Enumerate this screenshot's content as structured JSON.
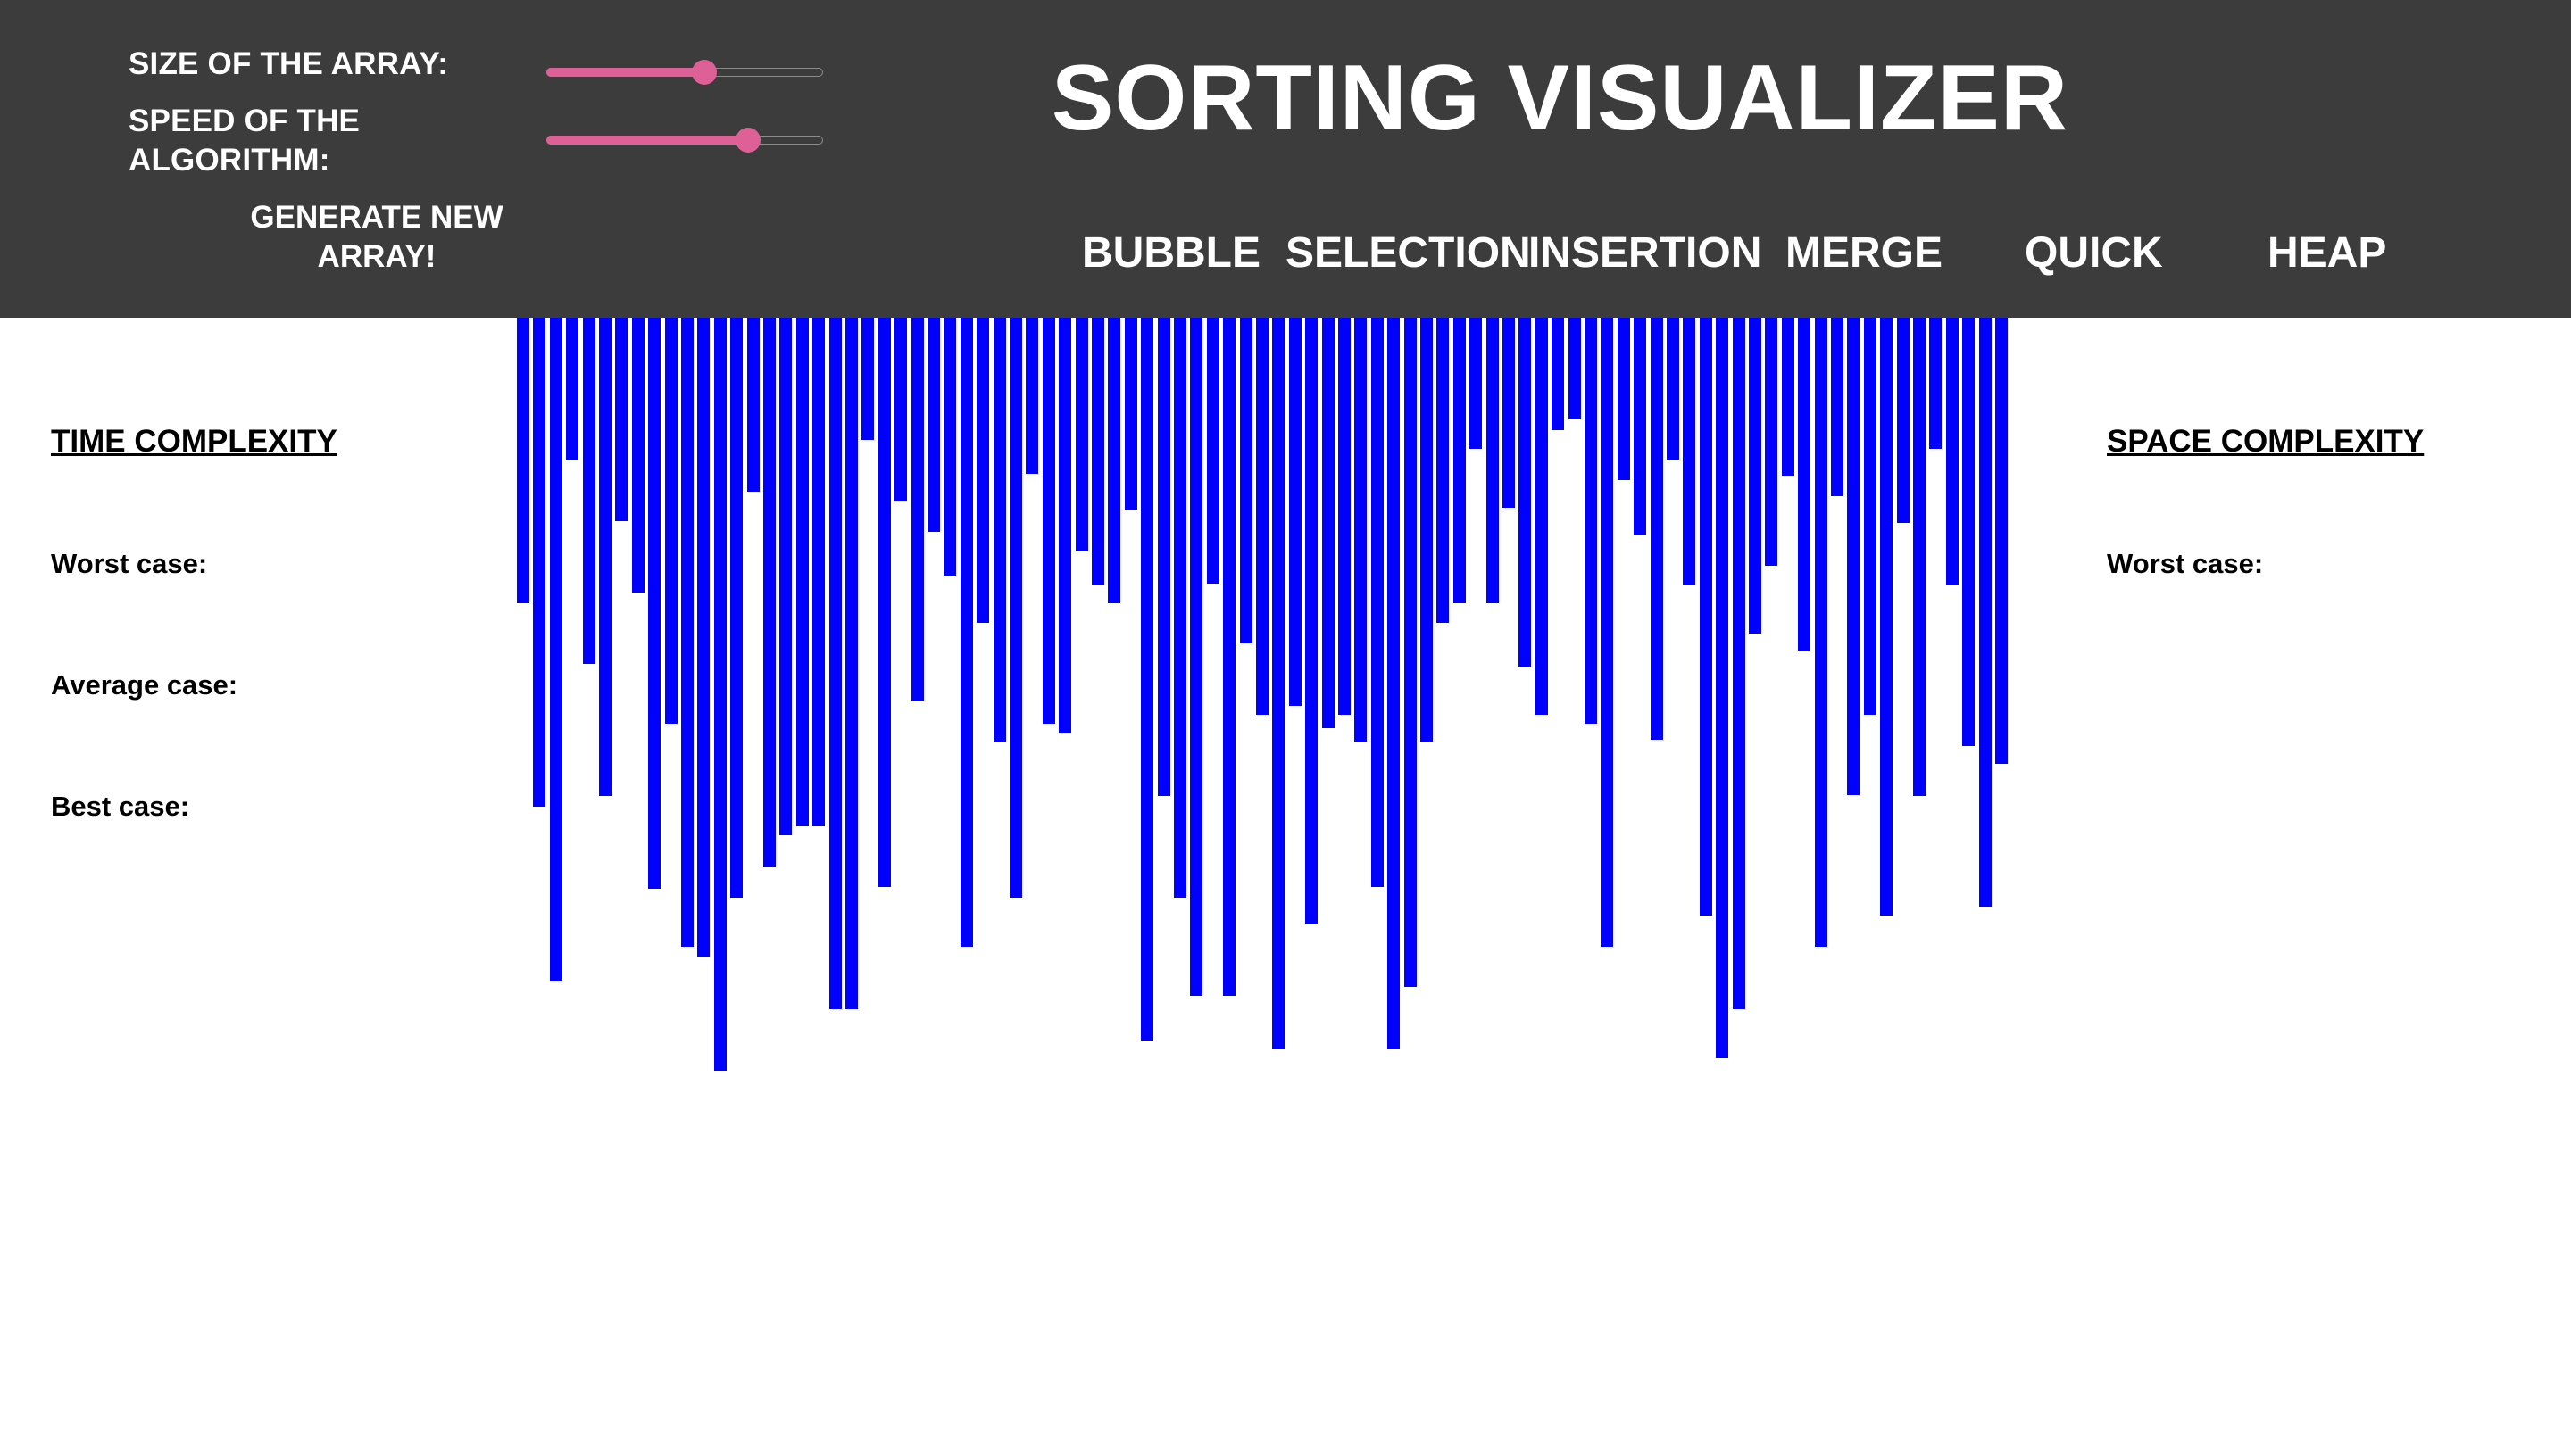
{
  "header": {
    "title": "SORTING VISUALIZER",
    "size_label": "SIZE OF THE ARRAY:",
    "speed_label": "SPEED OF THE ALGORITHM:",
    "generate_label": "GENERATE NEW ARRAY!",
    "size_slider_value": 0.57,
    "speed_slider_value": 0.73,
    "slider_color": "#dd6196",
    "background_color": "#3c3c3c"
  },
  "algorithms": [
    {
      "label": "BUBBLE"
    },
    {
      "label": "SELECTION"
    },
    {
      "label": "INSERTION"
    },
    {
      "label": "MERGE"
    },
    {
      "label": "QUICK"
    },
    {
      "label": "HEAP"
    }
  ],
  "time_complexity": {
    "heading": "TIME COMPLEXITY",
    "worst": "Worst case:",
    "average": "Average case:",
    "best": "Best case:"
  },
  "space_complexity": {
    "heading": "SPACE COMPLEXITY",
    "worst": "Worst case:"
  },
  "array": {
    "bar_color": "#0000ff",
    "values": [
      320,
      548,
      743,
      160,
      388,
      536,
      228,
      308,
      640,
      455,
      705,
      716,
      844,
      650,
      195,
      616,
      580,
      570,
      570,
      775,
      775,
      137,
      638,
      205,
      430,
      240,
      290,
      705,
      342,
      475,
      650,
      175,
      455,
      465,
      262,
      300,
      320,
      215,
      810,
      536,
      650,
      760,
      298,
      760,
      365,
      445,
      820,
      435,
      680,
      460,
      445,
      475,
      638,
      820,
      750,
      475,
      342,
      320,
      147,
      320,
      213,
      392,
      445,
      126,
      114,
      455,
      705,
      182,
      244,
      473,
      160,
      300,
      670,
      830,
      775,
      354,
      278,
      177,
      373,
      705,
      200,
      535,
      445,
      670,
      230,
      536,
      147,
      300,
      480,
      660,
      500
    ]
  }
}
